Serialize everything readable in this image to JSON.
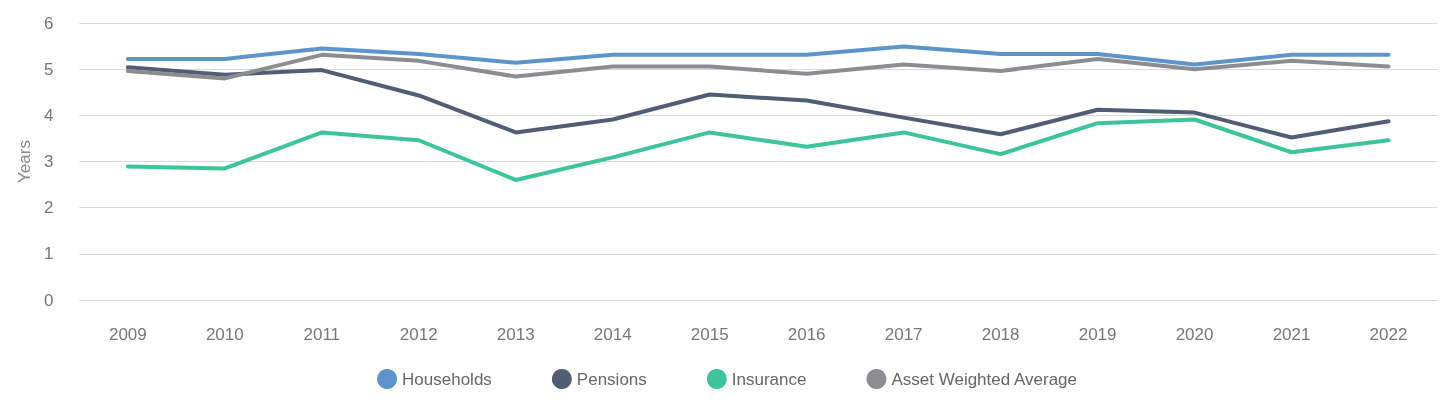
{
  "chart_data": {
    "type": "line",
    "ylabel": "Years",
    "categories": [
      "2009",
      "2010",
      "2011",
      "2012",
      "2013",
      "2014",
      "2015",
      "2016",
      "2017",
      "2018",
      "2019",
      "2020",
      "2021",
      "2022"
    ],
    "series": [
      {
        "name": "Households",
        "color": "#5b95cc",
        "values": [
          5.22,
          5.22,
          5.45,
          5.33,
          5.14,
          5.31,
          5.31,
          5.31,
          5.49,
          5.33,
          5.33,
          5.1,
          5.31,
          5.31
        ]
      },
      {
        "name": "Pensions",
        "color": "#505d74",
        "values": [
          5.04,
          4.88,
          4.98,
          4.43,
          3.63,
          3.91,
          4.45,
          4.32,
          3.95,
          3.59,
          4.12,
          4.06,
          3.52,
          3.87
        ]
      },
      {
        "name": "Insurance",
        "color": "#3cc49a",
        "values": [
          2.89,
          2.85,
          3.63,
          3.46,
          2.6,
          3.09,
          3.63,
          3.32,
          3.63,
          3.16,
          3.83,
          3.91,
          3.2,
          3.46
        ]
      },
      {
        "name": "Asset Weighted Average",
        "color": "#8c8d91",
        "values": [
          4.96,
          4.8,
          5.31,
          5.18,
          4.84,
          5.06,
          5.06,
          4.9,
          5.1,
          4.96,
          5.22,
          5.0,
          5.18,
          5.06
        ]
      }
    ],
    "ylim": [
      0,
      6
    ],
    "yticks": [
      0,
      1,
      2,
      3,
      4,
      5,
      6
    ],
    "grid": "y",
    "legend": "bottom",
    "marker": "none",
    "line_style": "solid"
  }
}
